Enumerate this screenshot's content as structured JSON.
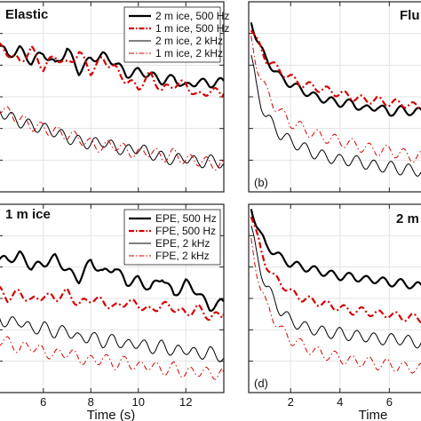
{
  "chart_data": [
    {
      "type": "line",
      "title": "Elastic",
      "panel_label": "",
      "xlabel": "",
      "xlim": [
        4.1,
        13.6
      ],
      "ylim": [
        -6,
        0
      ],
      "x_ticks": [
        6,
        8,
        10,
        12
      ],
      "x_tick_labels": [],
      "grid": true,
      "legend": "top-right",
      "series": [
        {
          "name": "2 m ice, 500 Hz",
          "color": "#000000",
          "style": "solid",
          "width": 2.2,
          "x": [
            4.1,
            4.5,
            5.0,
            5.5,
            6.0,
            6.5,
            7.0,
            7.5,
            8.0,
            8.5,
            9.0,
            9.5,
            10.0,
            10.5,
            11.0,
            11.5,
            12.0,
            12.5,
            13.0,
            13.6
          ],
          "y": [
            -1.3,
            -1.7,
            -1.5,
            -1.9,
            -1.6,
            -2.0,
            -1.5,
            -2.2,
            -1.8,
            -1.7,
            -1.9,
            -2.3,
            -2.2,
            -2.3,
            -2.5,
            -2.4,
            -2.7,
            -2.5,
            -2.6,
            -2.5
          ]
        },
        {
          "name": "1 m ice, 500 Hz",
          "color": "#d40000",
          "style": "dashdot",
          "width": 2.2,
          "x": [
            4.1,
            4.5,
            5.0,
            5.5,
            6.0,
            6.5,
            7.0,
            7.5,
            8.0,
            8.5,
            9.0,
            9.5,
            10.0,
            10.5,
            11.0,
            11.5,
            12.0,
            12.5,
            13.0,
            13.6
          ],
          "y": [
            -1.4,
            -1.6,
            -1.9,
            -1.5,
            -2.1,
            -1.7,
            -2.0,
            -1.6,
            -2.2,
            -1.8,
            -2.1,
            -2.5,
            -2.7,
            -2.3,
            -2.8,
            -2.6,
            -2.6,
            -3.0,
            -2.8,
            -2.9
          ]
        },
        {
          "name": "2 m ice, 2 kHz",
          "color": "#000000",
          "style": "solid",
          "width": 1.0,
          "x": [
            4.1,
            4.5,
            5.0,
            5.5,
            6.0,
            6.5,
            7.0,
            7.5,
            8.0,
            8.5,
            9.0,
            9.5,
            10.0,
            10.5,
            11.0,
            11.5,
            12.0,
            12.5,
            13.0,
            13.6
          ],
          "y": [
            -3.4,
            -3.6,
            -3.8,
            -3.9,
            -4.0,
            -4.1,
            -4.3,
            -4.4,
            -4.5,
            -4.4,
            -4.6,
            -4.7,
            -4.6,
            -4.8,
            -4.9,
            -5.0,
            -4.9,
            -5.1,
            -5.0,
            -5.1
          ]
        },
        {
          "name": "1 m ice, 2 kHz",
          "color": "#d40000",
          "style": "dashdot",
          "width": 1.0,
          "x": [
            4.1,
            4.5,
            5.0,
            5.5,
            6.0,
            6.5,
            7.0,
            7.5,
            8.0,
            8.5,
            9.0,
            9.5,
            10.0,
            10.5,
            11.0,
            11.5,
            12.0,
            12.5,
            13.0,
            13.6
          ],
          "y": [
            -3.3,
            -3.5,
            -3.7,
            -3.9,
            -4.0,
            -4.1,
            -4.2,
            -4.3,
            -4.5,
            -4.6,
            -4.5,
            -4.7,
            -4.8,
            -4.7,
            -4.9,
            -4.8,
            -5.0,
            -5.0,
            -5.1,
            -5.2
          ]
        }
      ]
    },
    {
      "type": "line",
      "title": "Flu",
      "panel_label": "(b)",
      "xlabel": "",
      "xlim": [
        0.3,
        7.5
      ],
      "ylim": [
        -6,
        0
      ],
      "x_ticks": [
        2,
        4,
        6
      ],
      "x_tick_labels": [],
      "grid": true,
      "legend": "",
      "series": [
        {
          "name": "",
          "color": "#000000",
          "style": "solid",
          "width": 2.2,
          "x": [
            0.4,
            0.6,
            0.8,
            1.0,
            1.3,
            1.6,
            2.0,
            2.5,
            3.0,
            3.5,
            4.0,
            4.5,
            5.0,
            5.5,
            6.0,
            6.5,
            7.0,
            7.5
          ],
          "y": [
            -0.6,
            -1.1,
            -1.5,
            -1.8,
            -2.1,
            -2.4,
            -2.6,
            -2.8,
            -3.0,
            -3.1,
            -3.2,
            -3.2,
            -3.4,
            -3.3,
            -3.5,
            -3.4,
            -3.5,
            -3.4
          ]
        },
        {
          "name": "",
          "color": "#d40000",
          "style": "dashdot",
          "width": 2.2,
          "x": [
            0.4,
            0.6,
            0.8,
            1.0,
            1.3,
            1.6,
            2.0,
            2.5,
            3.0,
            3.5,
            4.0,
            4.5,
            5.0,
            5.5,
            6.0,
            6.5,
            7.0,
            7.5
          ],
          "y": [
            -0.8,
            -1.2,
            -1.5,
            -1.8,
            -2.0,
            -2.2,
            -2.4,
            -2.6,
            -2.7,
            -2.8,
            -2.9,
            -3.0,
            -3.1,
            -3.1,
            -3.2,
            -3.2,
            -3.3,
            -3.3
          ]
        },
        {
          "name": "",
          "color": "#000000",
          "style": "solid",
          "width": 1.0,
          "x": [
            0.4,
            0.6,
            0.8,
            1.0,
            1.3,
            1.6,
            2.0,
            2.5,
            3.0,
            3.5,
            4.0,
            4.5,
            5.0,
            5.5,
            6.0,
            6.5,
            7.0,
            7.5
          ],
          "y": [
            -1.8,
            -2.6,
            -3.2,
            -3.6,
            -3.9,
            -4.2,
            -4.4,
            -4.6,
            -4.8,
            -4.9,
            -5.0,
            -5.0,
            -5.1,
            -5.2,
            -5.2,
            -5.3,
            -5.3,
            -5.4
          ]
        },
        {
          "name": "",
          "color": "#d40000",
          "style": "dashdot",
          "width": 1.0,
          "x": [
            0.4,
            0.6,
            0.8,
            1.0,
            1.3,
            1.6,
            2.0,
            2.5,
            3.0,
            3.5,
            4.0,
            4.5,
            5.0,
            5.5,
            6.0,
            6.5,
            7.0,
            7.5
          ],
          "y": [
            -1.2,
            -1.9,
            -2.4,
            -2.8,
            -3.2,
            -3.5,
            -3.8,
            -4.0,
            -4.2,
            -4.3,
            -4.4,
            -4.5,
            -4.6,
            -4.7,
            -4.7,
            -4.8,
            -4.9,
            -4.9
          ]
        }
      ]
    },
    {
      "type": "line",
      "title": "1 m ice",
      "panel_label": "",
      "xlabel": "Time (s)",
      "xlim": [
        4.1,
        13.6
      ],
      "ylim": [
        -6,
        0
      ],
      "x_ticks": [
        6,
        8,
        10,
        12
      ],
      "x_tick_labels": [
        "6",
        "8",
        "10",
        "12"
      ],
      "grid": true,
      "legend": "top-right",
      "series": [
        {
          "name": "EPE, 500 Hz",
          "color": "#000000",
          "style": "solid",
          "width": 2.2,
          "x": [
            4.1,
            4.5,
            5.0,
            5.5,
            6.0,
            6.5,
            7.0,
            7.5,
            8.0,
            8.5,
            9.0,
            9.5,
            10.0,
            10.5,
            11.0,
            11.5,
            12.0,
            12.5,
            13.0,
            13.6
          ],
          "y": [
            -1.7,
            -1.8,
            -1.6,
            -2.0,
            -1.9,
            -1.7,
            -2.1,
            -2.4,
            -1.8,
            -2.2,
            -2.0,
            -2.5,
            -2.4,
            -2.7,
            -2.3,
            -2.9,
            -2.5,
            -2.8,
            -3.3,
            -3.1
          ]
        },
        {
          "name": "FPE, 500 Hz",
          "color": "#d40000",
          "style": "dashdot",
          "width": 2.2,
          "x": [
            4.1,
            4.5,
            5.0,
            5.5,
            6.0,
            6.5,
            7.0,
            7.5,
            8.0,
            8.5,
            9.0,
            9.5,
            10.0,
            10.5,
            11.0,
            11.5,
            12.0,
            12.5,
            13.0,
            13.6
          ],
          "y": [
            -2.7,
            -3.0,
            -2.8,
            -3.1,
            -2.9,
            -3.0,
            -2.8,
            -3.2,
            -3.0,
            -3.1,
            -3.3,
            -3.1,
            -3.2,
            -3.4,
            -3.2,
            -3.3,
            -3.5,
            -3.3,
            -3.6,
            -3.5
          ]
        },
        {
          "name": "EPE, 2 kHz",
          "color": "#000000",
          "style": "solid",
          "width": 1.0,
          "x": [
            4.1,
            4.5,
            5.0,
            5.5,
            6.0,
            6.5,
            7.0,
            7.5,
            8.0,
            8.5,
            9.0,
            9.5,
            10.0,
            10.5,
            11.0,
            11.5,
            12.0,
            12.5,
            13.0,
            13.6
          ],
          "y": [
            -3.6,
            -3.8,
            -3.7,
            -4.0,
            -3.9,
            -4.1,
            -4.0,
            -4.3,
            -4.2,
            -4.4,
            -4.3,
            -4.5,
            -4.4,
            -4.6,
            -4.5,
            -4.7,
            -4.6,
            -4.8,
            -4.7,
            -4.9
          ]
        },
        {
          "name": "FPE, 2 kHz",
          "color": "#d40000",
          "style": "dashdot",
          "width": 1.0,
          "x": [
            4.1,
            4.5,
            5.0,
            5.5,
            6.0,
            6.5,
            7.0,
            7.5,
            8.0,
            8.5,
            9.0,
            9.5,
            10.0,
            10.5,
            11.0,
            11.5,
            12.0,
            12.5,
            13.0,
            13.6
          ],
          "y": [
            -4.3,
            -4.4,
            -4.6,
            -4.5,
            -4.7,
            -4.8,
            -4.7,
            -4.9,
            -5.0,
            -4.9,
            -5.1,
            -5.0,
            -5.2,
            -5.1,
            -5.3,
            -5.2,
            -5.4,
            -5.3,
            -5.4,
            -5.4
          ]
        }
      ]
    },
    {
      "type": "line",
      "title": "2 m",
      "panel_label": "(d)",
      "xlabel": "Time",
      "xlim": [
        0.3,
        7.5
      ],
      "ylim": [
        -6,
        0
      ],
      "x_ticks": [
        2,
        4,
        6
      ],
      "x_tick_labels": [
        "2",
        "4",
        "6"
      ],
      "grid": true,
      "legend": "",
      "series": [
        {
          "name": "",
          "color": "#000000",
          "style": "solid",
          "width": 2.2,
          "x": [
            0.4,
            0.6,
            0.8,
            1.0,
            1.3,
            1.6,
            2.0,
            2.5,
            3.0,
            3.5,
            4.0,
            4.5,
            5.0,
            5.5,
            6.0,
            6.5,
            7.0,
            7.5
          ],
          "y": [
            -0.1,
            -0.6,
            -1.0,
            -1.3,
            -1.5,
            -1.7,
            -1.9,
            -2.0,
            -2.1,
            -2.2,
            -2.3,
            -2.3,
            -2.4,
            -2.4,
            -2.5,
            -2.5,
            -2.6,
            -2.6
          ]
        },
        {
          "name": "",
          "color": "#d40000",
          "style": "dashdot",
          "width": 2.2,
          "x": [
            0.4,
            0.6,
            0.8,
            1.0,
            1.3,
            1.6,
            2.0,
            2.5,
            3.0,
            3.5,
            4.0,
            4.5,
            5.0,
            5.5,
            6.0,
            6.5,
            7.0,
            7.5
          ],
          "y": [
            -0.3,
            -0.9,
            -1.5,
            -1.9,
            -2.3,
            -2.5,
            -2.8,
            -3.0,
            -3.1,
            -3.2,
            -3.3,
            -3.4,
            -3.4,
            -3.5,
            -3.5,
            -3.6,
            -3.6,
            -3.7
          ]
        },
        {
          "name": "",
          "color": "#000000",
          "style": "solid",
          "width": 1.0,
          "x": [
            0.4,
            0.6,
            0.8,
            1.0,
            1.3,
            1.6,
            2.0,
            2.5,
            3.0,
            3.5,
            4.0,
            4.5,
            5.0,
            5.5,
            6.0,
            6.5,
            7.0,
            7.5
          ],
          "y": [
            -0.8,
            -1.5,
            -2.1,
            -2.6,
            -3.0,
            -3.4,
            -3.7,
            -3.9,
            -4.0,
            -4.1,
            -4.1,
            -4.2,
            -4.2,
            -4.3,
            -4.3,
            -4.3,
            -4.4,
            -4.4
          ]
        },
        {
          "name": "",
          "color": "#d40000",
          "style": "dashdot",
          "width": 1.0,
          "x": [
            0.4,
            0.6,
            0.8,
            1.0,
            1.3,
            1.6,
            2.0,
            2.5,
            3.0,
            3.5,
            4.0,
            4.5,
            5.0,
            5.5,
            6.0,
            6.5,
            7.0,
            7.5
          ],
          "y": [
            -1.2,
            -2.0,
            -2.7,
            -3.2,
            -3.6,
            -4.0,
            -4.3,
            -4.5,
            -4.7,
            -4.8,
            -4.9,
            -5.0,
            -5.0,
            -5.1,
            -5.1,
            -5.2,
            -5.2,
            -5.3
          ]
        }
      ]
    }
  ]
}
